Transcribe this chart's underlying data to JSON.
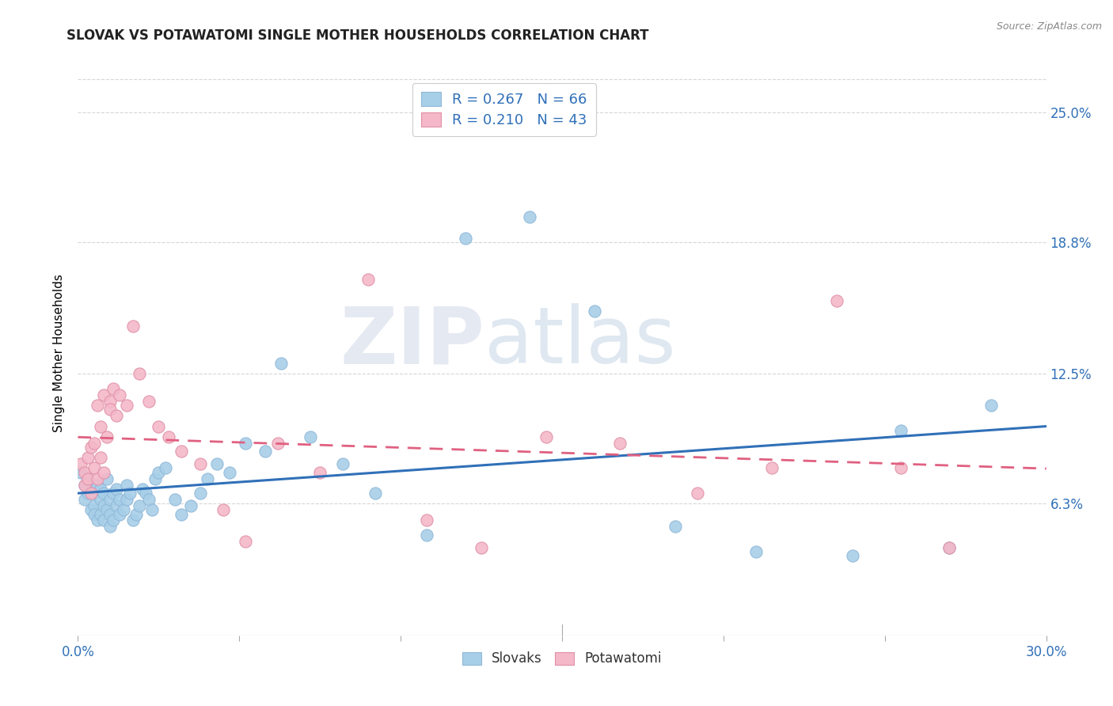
{
  "title": "SLOVAK VS POTAWATOMI SINGLE MOTHER HOUSEHOLDS CORRELATION CHART",
  "source": "Source: ZipAtlas.com",
  "ylabel": "Single Mother Households",
  "ytick_labels": [
    "6.3%",
    "12.5%",
    "18.8%",
    "25.0%"
  ],
  "ytick_values": [
    0.063,
    0.125,
    0.188,
    0.25
  ],
  "xtick_values": [
    0.0,
    0.05,
    0.1,
    0.15,
    0.2,
    0.25,
    0.3
  ],
  "xmin": 0.0,
  "xmax": 0.3,
  "ymin": 0.0,
  "ymax": 0.27,
  "slovak_color": "#a8cfe8",
  "potawatomi_color": "#f4b8c8",
  "slovak_line_color": "#3070b8",
  "potawatomi_line_color": "#e06080",
  "background_color": "#ffffff",
  "grid_color": "#cccccc",
  "watermark_zip": "ZIP",
  "watermark_atlas": "atlas",
  "slovak_x": [
    0.001,
    0.002,
    0.002,
    0.003,
    0.003,
    0.004,
    0.004,
    0.005,
    0.005,
    0.005,
    0.006,
    0.006,
    0.007,
    0.007,
    0.007,
    0.008,
    0.008,
    0.008,
    0.009,
    0.009,
    0.01,
    0.01,
    0.01,
    0.011,
    0.011,
    0.012,
    0.012,
    0.013,
    0.013,
    0.014,
    0.015,
    0.015,
    0.016,
    0.017,
    0.018,
    0.019,
    0.02,
    0.021,
    0.022,
    0.023,
    0.024,
    0.025,
    0.027,
    0.03,
    0.032,
    0.035,
    0.038,
    0.04,
    0.043,
    0.047,
    0.052,
    0.058,
    0.063,
    0.072,
    0.082,
    0.092,
    0.108,
    0.12,
    0.14,
    0.16,
    0.185,
    0.21,
    0.24,
    0.255,
    0.27,
    0.283
  ],
  "slovak_y": [
    0.078,
    0.072,
    0.065,
    0.068,
    0.075,
    0.06,
    0.07,
    0.062,
    0.068,
    0.058,
    0.072,
    0.055,
    0.065,
    0.058,
    0.07,
    0.062,
    0.055,
    0.068,
    0.06,
    0.075,
    0.052,
    0.058,
    0.065,
    0.068,
    0.055,
    0.062,
    0.07,
    0.058,
    0.065,
    0.06,
    0.072,
    0.065,
    0.068,
    0.055,
    0.058,
    0.062,
    0.07,
    0.068,
    0.065,
    0.06,
    0.075,
    0.078,
    0.08,
    0.065,
    0.058,
    0.062,
    0.068,
    0.075,
    0.082,
    0.078,
    0.092,
    0.088,
    0.13,
    0.095,
    0.082,
    0.068,
    0.048,
    0.19,
    0.2,
    0.155,
    0.052,
    0.04,
    0.038,
    0.098,
    0.042,
    0.11
  ],
  "potawatomi_x": [
    0.001,
    0.002,
    0.002,
    0.003,
    0.003,
    0.004,
    0.004,
    0.005,
    0.005,
    0.006,
    0.006,
    0.007,
    0.007,
    0.008,
    0.008,
    0.009,
    0.01,
    0.01,
    0.011,
    0.012,
    0.013,
    0.015,
    0.017,
    0.019,
    0.022,
    0.025,
    0.028,
    0.032,
    0.038,
    0.045,
    0.052,
    0.062,
    0.075,
    0.09,
    0.108,
    0.125,
    0.145,
    0.168,
    0.192,
    0.215,
    0.235,
    0.255,
    0.27
  ],
  "potawatomi_y": [
    0.082,
    0.078,
    0.072,
    0.085,
    0.075,
    0.09,
    0.068,
    0.092,
    0.08,
    0.075,
    0.11,
    0.085,
    0.1,
    0.078,
    0.115,
    0.095,
    0.112,
    0.108,
    0.118,
    0.105,
    0.115,
    0.11,
    0.148,
    0.125,
    0.112,
    0.1,
    0.095,
    0.088,
    0.082,
    0.06,
    0.045,
    0.092,
    0.078,
    0.17,
    0.055,
    0.042,
    0.095,
    0.092,
    0.068,
    0.08,
    0.16,
    0.08,
    0.042
  ]
}
